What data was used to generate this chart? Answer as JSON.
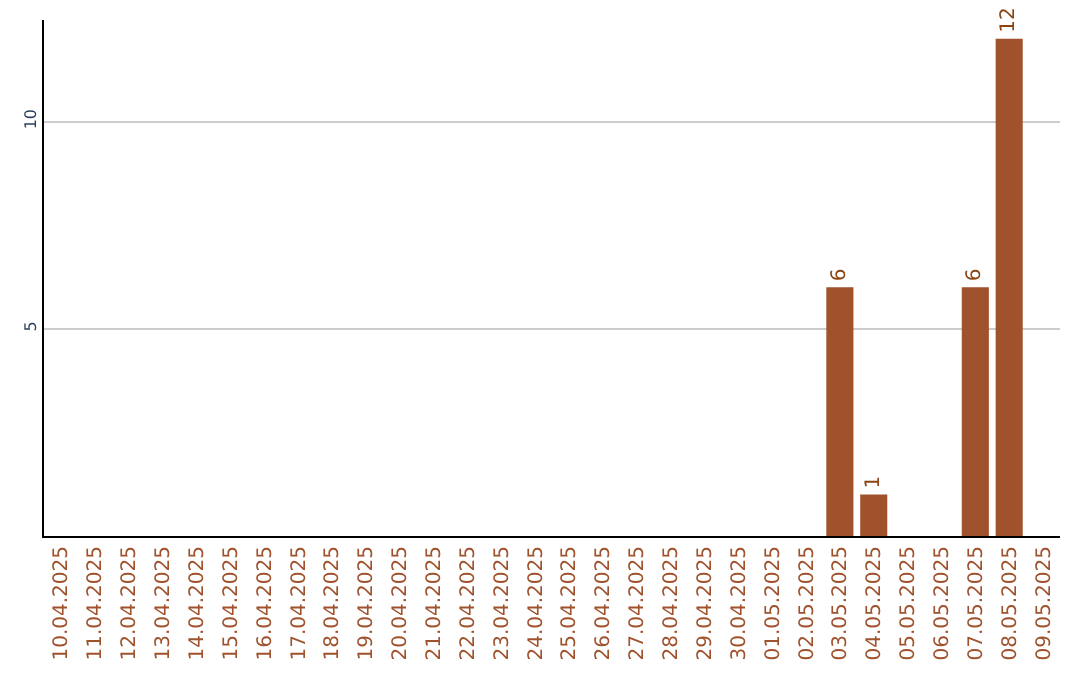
{
  "chart_data": {
    "type": "bar",
    "categories": [
      "10.04.2025",
      "11.04.2025",
      "12.04.2025",
      "13.04.2025",
      "14.04.2025",
      "15.04.2025",
      "16.04.2025",
      "17.04.2025",
      "18.04.2025",
      "19.04.2025",
      "20.04.2025",
      "21.04.2025",
      "22.04.2025",
      "23.04.2025",
      "24.04.2025",
      "25.04.2025",
      "26.04.2025",
      "27.04.2025",
      "28.04.2025",
      "29.04.2025",
      "30.04.2025",
      "01.05.2025",
      "02.05.2025",
      "03.05.2025",
      "04.05.2025",
      "05.05.2025",
      "06.05.2025",
      "07.05.2025",
      "08.05.2025",
      "09.05.2025"
    ],
    "values": [
      0,
      0,
      0,
      0,
      0,
      0,
      0,
      0,
      0,
      0,
      0,
      0,
      0,
      0,
      0,
      0,
      0,
      0,
      0,
      0,
      0,
      0,
      0,
      6,
      1,
      0,
      0,
      6,
      12,
      0
    ],
    "value_labels": [
      null,
      null,
      null,
      null,
      null,
      null,
      null,
      null,
      null,
      null,
      null,
      null,
      null,
      null,
      null,
      null,
      null,
      null,
      null,
      null,
      null,
      null,
      null,
      "6",
      "1",
      null,
      null,
      "6",
      "12",
      null
    ],
    "color": "#a0522d",
    "ylim": [
      0,
      12.45
    ],
    "yticks": [
      5,
      10
    ],
    "grid": "y",
    "legend": false
  }
}
